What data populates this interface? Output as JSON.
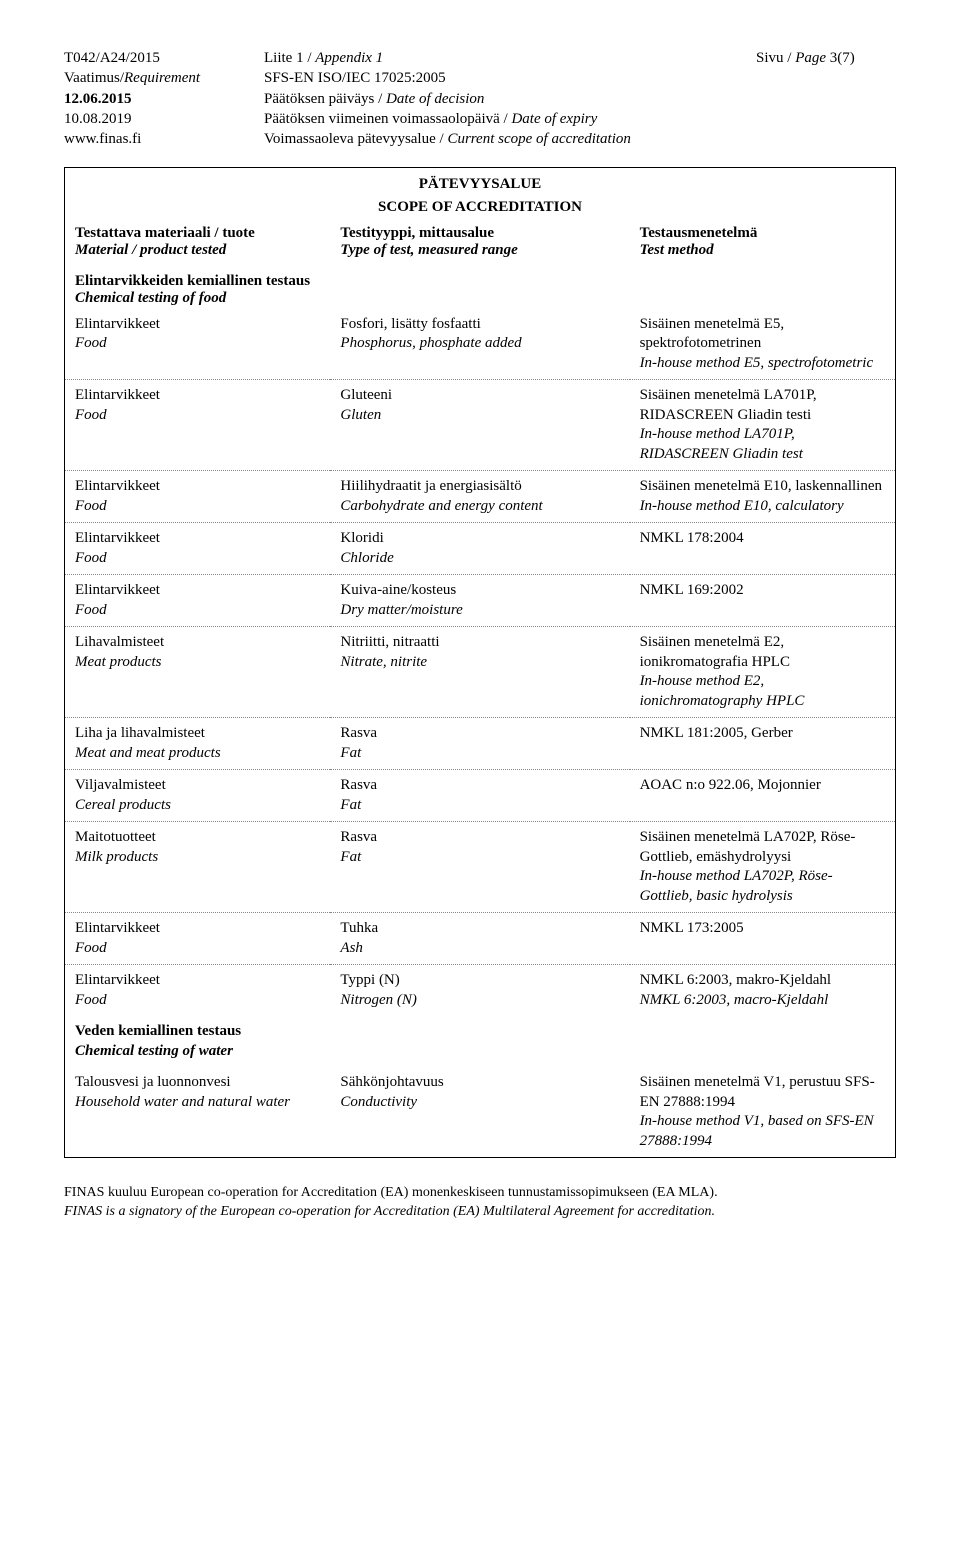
{
  "header": {
    "left": [
      {
        "plain": "T042/A24/2015",
        "italic": ""
      },
      {
        "plain": "Vaatimus/",
        "italic": "Requirement"
      },
      {
        "plain": "12.06.2015",
        "italic": "",
        "bold": true
      },
      {
        "plain": "10.08.2019",
        "italic": ""
      },
      {
        "plain": "www.finas.fi",
        "italic": ""
      }
    ],
    "mid": [
      {
        "plain": "Liite 1 / ",
        "italic": "Appendix 1"
      },
      {
        "plain": "SFS-EN ISO/IEC 17025:2005",
        "italic": ""
      },
      {
        "plain": "Päätöksen päiväys / ",
        "italic": "Date of decision"
      },
      {
        "plain": "Päätöksen viimeinen voimassaolopäivä / ",
        "italic": "Date of expiry"
      },
      {
        "plain": "Voimassaoleva pätevyysalue / ",
        "italic": "Current scope of accreditation"
      }
    ],
    "right": [
      {
        "plain": "Sivu  / ",
        "italic": "Page ",
        "tail": "3(7)"
      }
    ]
  },
  "tableTitle": {
    "line1": "PÄTEVYYSALUE",
    "line2": "SCOPE OF ACCREDITATION"
  },
  "colHeaders": {
    "left": {
      "l1": "Testattava materiaali / tuote",
      "l2": "Material / product tested"
    },
    "mid": {
      "l1": "Testityyppi, mittausalue",
      "l2": "Type of test, measured range"
    },
    "right": {
      "l1": "Testausmenetelmä",
      "l2": "Test method"
    }
  },
  "section1": {
    "l1": "Elintarvikkeiden kemiallinen testaus",
    "l2": "Chemical testing of food"
  },
  "rows1": [
    {
      "c1": {
        "p": "Elintarvikkeet",
        "i": "Food"
      },
      "c2": {
        "p": "Fosfori, lisätty fosfaatti",
        "i": "Phosphorus, phosphate added"
      },
      "c3": {
        "p": "Sisäinen menetelmä E5, spektrofotometrinen",
        "i": "In-house method E5, spectrofotometric"
      }
    },
    {
      "c1": {
        "p": "Elintarvikkeet",
        "i": "Food"
      },
      "c2": {
        "p": "Gluteeni",
        "i": "Gluten"
      },
      "c3": {
        "p": "Sisäinen menetelmä LA701P, RIDASCREEN Gliadin testi",
        "i": "In-house method LA701P, RIDASCREEN Gliadin test"
      }
    },
    {
      "c1": {
        "p": "Elintarvikkeet",
        "i": "Food"
      },
      "c2": {
        "p": "Hiilihydraatit ja energiasisältö",
        "i": "Carbohydrate and energy content"
      },
      "c3": {
        "p": "Sisäinen menetelmä E10, laskennallinen",
        "i": "In-house method E10, calculatory"
      }
    },
    {
      "c1": {
        "p": "Elintarvikkeet",
        "i": "Food"
      },
      "c2": {
        "p": "Kloridi",
        "i": "Chloride"
      },
      "c3": {
        "p": "NMKL 178:2004",
        "i": ""
      }
    },
    {
      "c1": {
        "p": "Elintarvikkeet",
        "i": "Food"
      },
      "c2": {
        "p": "Kuiva-aine/kosteus",
        "i": "Dry matter/moisture"
      },
      "c3": {
        "p": "NMKL 169:2002",
        "i": ""
      }
    },
    {
      "c1": {
        "p": "Lihavalmisteet",
        "i": "Meat products"
      },
      "c2": {
        "p": "Nitriitti, nitraatti",
        "i": "Nitrate, nitrite"
      },
      "c3": {
        "p": "Sisäinen menetelmä E2, ionikromatografia HPLC",
        "i": "In-house method E2, ionichromatography HPLC"
      }
    },
    {
      "c1": {
        "p": "Liha ja lihavalmisteet",
        "i": "Meat and meat products"
      },
      "c2": {
        "p": "Rasva",
        "i": "Fat"
      },
      "c3": {
        "p": "NMKL 181:2005, Gerber",
        "i": ""
      }
    },
    {
      "c1": {
        "p": "Viljavalmisteet",
        "i": "Cereal products"
      },
      "c2": {
        "p": "Rasva",
        "i": "Fat"
      },
      "c3": {
        "p": "AOAC n:o 922.06, Mojonnier",
        "i": ""
      }
    },
    {
      "c1": {
        "p": "Maitotuotteet",
        "i": "Milk products"
      },
      "c2": {
        "p": "Rasva",
        "i": "Fat"
      },
      "c3": {
        "p": "Sisäinen menetelmä LA702P, Röse-Gottlieb, emäshydrolyysi",
        "i": "In-house method LA702P, Röse-Gottlieb, basic hydrolysis"
      }
    },
    {
      "c1": {
        "p": "Elintarvikkeet",
        "i": "Food"
      },
      "c2": {
        "p": "Tuhka",
        "i": "Ash"
      },
      "c3": {
        "p": "NMKL 173:2005",
        "i": ""
      }
    },
    {
      "c1": {
        "p": "Elintarvikkeet",
        "i": "Food"
      },
      "c2": {
        "p": "Typpi (N)",
        "i": "Nitrogen (N)"
      },
      "c3": {
        "p": "NMKL 6:2003, makro-Kjeldahl",
        "i": "NMKL 6:2003, macro-Kjeldahl"
      }
    }
  ],
  "section2": {
    "l1": "Veden kemiallinen testaus",
    "l2": "Chemical testing of water"
  },
  "rows2": [
    {
      "c1": {
        "p": "Talousvesi ja luonnonvesi",
        "i": "Household water and natural water"
      },
      "c2": {
        "p": "Sähkönjohtavuus",
        "i": "Conductivity"
      },
      "c3": {
        "p": "Sisäinen menetelmä V1, perustuu SFS-EN 27888:1994",
        "i": "In-house method V1, based on SFS-EN 27888:1994"
      }
    }
  ],
  "footer": {
    "l1": "FINAS kuuluu European co-operation for Accreditation (EA) monenkeskiseen tunnustamissopimukseen (EA MLA).",
    "l2": "FINAS is a signatory of the European co-operation for Accreditation (EA) Multilateral Agreement for accreditation."
  }
}
